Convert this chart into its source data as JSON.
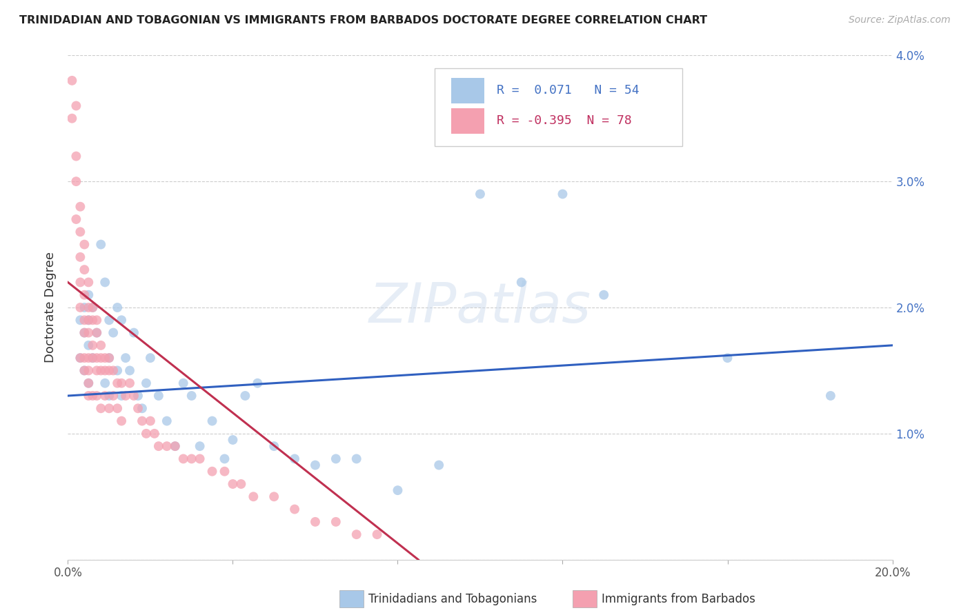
{
  "title": "TRINIDADIAN AND TOBAGONIAN VS IMMIGRANTS FROM BARBADOS DOCTORATE DEGREE CORRELATION CHART",
  "source": "Source: ZipAtlas.com",
  "ylabel": "Doctorate Degree",
  "xlim": [
    0.0,
    0.2
  ],
  "ylim": [
    0.0,
    0.04
  ],
  "xticks": [
    0.0,
    0.04,
    0.08,
    0.12,
    0.16,
    0.2
  ],
  "xticklabels": [
    "0.0%",
    "",
    "",
    "",
    "",
    "20.0%"
  ],
  "yticks": [
    0.0,
    0.01,
    0.02,
    0.03,
    0.04
  ],
  "yticklabels_right": [
    "",
    "1.0%",
    "2.0%",
    "3.0%",
    "4.0%"
  ],
  "blue_color": "#a8c8e8",
  "pink_color": "#f4a0b0",
  "blue_line_color": "#3060c0",
  "pink_line_color": "#c03050",
  "R_blue": 0.071,
  "N_blue": 54,
  "R_pink": -0.395,
  "N_pink": 78,
  "legend_label_blue": "Trinidadians and Tobagonians",
  "legend_label_pink": "Immigrants from Barbados",
  "blue_scatter_x": [
    0.003,
    0.003,
    0.004,
    0.004,
    0.004,
    0.005,
    0.005,
    0.005,
    0.005,
    0.006,
    0.006,
    0.007,
    0.008,
    0.009,
    0.009,
    0.01,
    0.01,
    0.01,
    0.011,
    0.012,
    0.012,
    0.013,
    0.013,
    0.014,
    0.015,
    0.016,
    0.017,
    0.018,
    0.019,
    0.02,
    0.022,
    0.024,
    0.026,
    0.028,
    0.03,
    0.032,
    0.035,
    0.038,
    0.04,
    0.043,
    0.046,
    0.05,
    0.055,
    0.06,
    0.065,
    0.07,
    0.08,
    0.09,
    0.1,
    0.11,
    0.12,
    0.13,
    0.16,
    0.185
  ],
  "blue_scatter_y": [
    0.019,
    0.016,
    0.02,
    0.018,
    0.015,
    0.021,
    0.019,
    0.017,
    0.014,
    0.02,
    0.016,
    0.018,
    0.025,
    0.022,
    0.014,
    0.019,
    0.016,
    0.013,
    0.018,
    0.02,
    0.015,
    0.019,
    0.013,
    0.016,
    0.015,
    0.018,
    0.013,
    0.012,
    0.014,
    0.016,
    0.013,
    0.011,
    0.009,
    0.014,
    0.013,
    0.009,
    0.011,
    0.008,
    0.0095,
    0.013,
    0.014,
    0.009,
    0.008,
    0.0075,
    0.008,
    0.008,
    0.0055,
    0.0075,
    0.029,
    0.022,
    0.029,
    0.021,
    0.016,
    0.013
  ],
  "pink_scatter_x": [
    0.001,
    0.001,
    0.002,
    0.002,
    0.002,
    0.002,
    0.003,
    0.003,
    0.003,
    0.003,
    0.003,
    0.003,
    0.004,
    0.004,
    0.004,
    0.004,
    0.004,
    0.004,
    0.004,
    0.005,
    0.005,
    0.005,
    0.005,
    0.005,
    0.005,
    0.005,
    0.005,
    0.006,
    0.006,
    0.006,
    0.006,
    0.006,
    0.007,
    0.007,
    0.007,
    0.007,
    0.007,
    0.008,
    0.008,
    0.008,
    0.008,
    0.009,
    0.009,
    0.009,
    0.01,
    0.01,
    0.01,
    0.011,
    0.011,
    0.012,
    0.012,
    0.013,
    0.013,
    0.014,
    0.015,
    0.016,
    0.017,
    0.018,
    0.019,
    0.02,
    0.021,
    0.022,
    0.024,
    0.026,
    0.028,
    0.03,
    0.032,
    0.035,
    0.038,
    0.04,
    0.042,
    0.045,
    0.05,
    0.055,
    0.06,
    0.065,
    0.07,
    0.075
  ],
  "pink_scatter_y": [
    0.038,
    0.035,
    0.036,
    0.032,
    0.03,
    0.027,
    0.028,
    0.026,
    0.024,
    0.022,
    0.02,
    0.016,
    0.025,
    0.023,
    0.021,
    0.019,
    0.018,
    0.016,
    0.015,
    0.022,
    0.02,
    0.019,
    0.018,
    0.016,
    0.015,
    0.014,
    0.013,
    0.02,
    0.019,
    0.017,
    0.016,
    0.013,
    0.019,
    0.018,
    0.016,
    0.015,
    0.013,
    0.017,
    0.016,
    0.015,
    0.012,
    0.016,
    0.015,
    0.013,
    0.016,
    0.015,
    0.012,
    0.015,
    0.013,
    0.014,
    0.012,
    0.014,
    0.011,
    0.013,
    0.014,
    0.013,
    0.012,
    0.011,
    0.01,
    0.011,
    0.01,
    0.009,
    0.009,
    0.009,
    0.008,
    0.008,
    0.008,
    0.007,
    0.007,
    0.006,
    0.006,
    0.005,
    0.005,
    0.004,
    0.003,
    0.003,
    0.002,
    0.002
  ],
  "blue_line_x": [
    0.0,
    0.2
  ],
  "blue_line_y": [
    0.013,
    0.017
  ],
  "pink_line_x": [
    0.0,
    0.085
  ],
  "pink_line_y": [
    0.022,
    0.0
  ]
}
